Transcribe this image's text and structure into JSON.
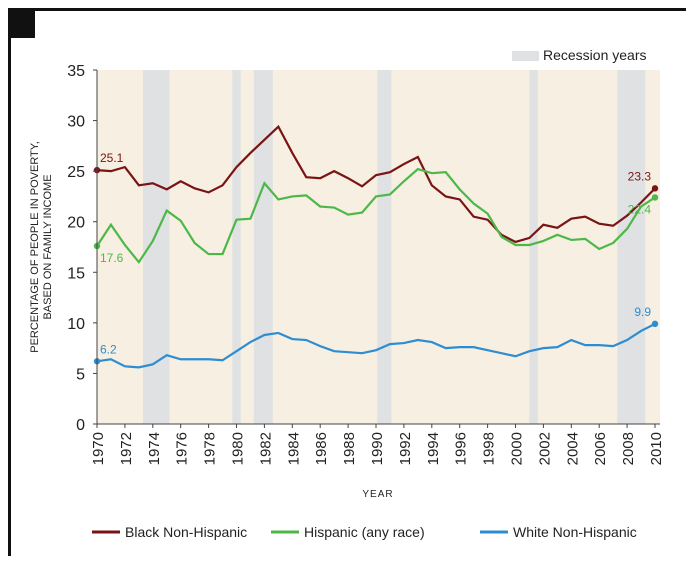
{
  "chart_data": {
    "type": "line",
    "ylabel": [
      "PERCENTAGE OF PEOPLE IN POVERTY,",
      "BASED ON FAMILY INCOME"
    ],
    "xlabel": "YEAR",
    "x": [
      1970,
      1971,
      1972,
      1973,
      1974,
      1975,
      1976,
      1977,
      1978,
      1979,
      1980,
      1981,
      1982,
      1983,
      1984,
      1985,
      1986,
      1987,
      1988,
      1989,
      1990,
      1991,
      1992,
      1993,
      1994,
      1995,
      1996,
      1997,
      1998,
      1999,
      2000,
      2001,
      2002,
      2003,
      2004,
      2005,
      2006,
      2007,
      2008,
      2009,
      2010
    ],
    "series": [
      {
        "name": "Black Non-Hispanic",
        "color": "#7a1414",
        "values": [
          25.1,
          25.0,
          25.4,
          23.6,
          23.8,
          23.2,
          24.0,
          23.3,
          22.9,
          23.6,
          25.4,
          26.8,
          28.1,
          29.4,
          26.8,
          24.4,
          24.3,
          25.0,
          24.3,
          23.5,
          24.6,
          24.9,
          25.7,
          26.4,
          23.6,
          22.5,
          22.2,
          20.5,
          20.2,
          18.7,
          18.0,
          18.4,
          19.7,
          19.4,
          20.3,
          20.5,
          19.8,
          19.6,
          20.6,
          21.9,
          23.3
        ]
      },
      {
        "name": "Hispanic (any race)",
        "color": "#4db848",
        "values": [
          17.6,
          19.7,
          17.7,
          16.0,
          18.1,
          21.1,
          20.1,
          17.9,
          16.8,
          16.8,
          20.2,
          20.3,
          23.8,
          22.2,
          22.5,
          22.6,
          21.5,
          21.4,
          20.7,
          20.9,
          22.5,
          22.7,
          24.0,
          25.2,
          24.8,
          24.9,
          23.2,
          21.8,
          20.8,
          18.5,
          17.7,
          17.7,
          18.1,
          18.7,
          18.2,
          18.3,
          17.3,
          17.9,
          19.3,
          21.5,
          22.4
        ]
      },
      {
        "name": "White Non-Hispanic",
        "color": "#2e8dd0",
        "values": [
          6.2,
          6.4,
          5.7,
          5.6,
          5.9,
          6.8,
          6.4,
          6.4,
          6.4,
          6.3,
          7.2,
          8.1,
          8.8,
          9.0,
          8.4,
          8.3,
          7.7,
          7.2,
          7.1,
          7.0,
          7.3,
          7.9,
          8.0,
          8.3,
          8.1,
          7.5,
          7.6,
          7.6,
          7.3,
          7.0,
          6.7,
          7.2,
          7.5,
          7.6,
          8.3,
          7.8,
          7.8,
          7.7,
          8.3,
          9.2,
          9.9
        ]
      }
    ],
    "recession_label": "Recession years",
    "recessions": [
      [
        1973.3,
        1975.2
      ],
      [
        1979.7,
        1980.3
      ],
      [
        1981.25,
        1982.6
      ],
      [
        1990.1,
        1991.1
      ],
      [
        2001.0,
        2001.6
      ],
      [
        2007.3,
        2009.3
      ]
    ],
    "recession_color": "#dfe1e3",
    "xlim": [
      1970,
      2010
    ],
    "xticks": [
      1970,
      1972,
      1974,
      1976,
      1978,
      1980,
      1982,
      1984,
      1986,
      1988,
      1990,
      1992,
      1994,
      1996,
      1998,
      2000,
      2002,
      2004,
      2006,
      2008,
      2010
    ],
    "ylim": [
      0,
      35
    ],
    "yticks": [
      0,
      5,
      10,
      15,
      20,
      25,
      30,
      35
    ],
    "grid": false
  }
}
